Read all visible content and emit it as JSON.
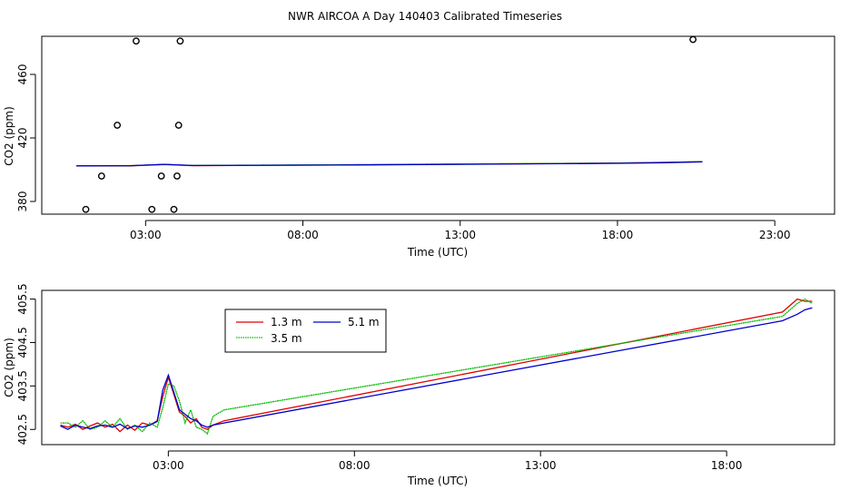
{
  "title": "NWR AIRCOA A  Day 140403  Calibrated Timeseries",
  "colors": {
    "r13": "#e00000",
    "r35": "#00bb00",
    "r51": "#0000cc",
    "axis": "#000000"
  },
  "chart_data": [
    {
      "type": "scatter",
      "id": "top",
      "xlabel": "Time (UTC)",
      "ylabel": "CO2 (ppm)",
      "xlim": [
        -0.3,
        24.9
      ],
      "ylim": [
        372,
        484
      ],
      "xticks": [
        3,
        8,
        13,
        18,
        23
      ],
      "xtick_labels": [
        "03:00",
        "08:00",
        "13:00",
        "18:00",
        "23:00"
      ],
      "yticks": [
        380,
        420,
        460
      ],
      "ytick_labels": [
        "380",
        "420",
        "460"
      ],
      "points": [
        {
          "x": 1.1,
          "y": 375
        },
        {
          "x": 1.6,
          "y": 396
        },
        {
          "x": 2.1,
          "y": 428
        },
        {
          "x": 2.7,
          "y": 481
        },
        {
          "x": 3.2,
          "y": 375
        },
        {
          "x": 3.5,
          "y": 396
        },
        {
          "x": 3.9,
          "y": 375
        },
        {
          "x": 4.0,
          "y": 396
        },
        {
          "x": 4.05,
          "y": 428
        },
        {
          "x": 4.1,
          "y": 481
        },
        {
          "x": 20.4,
          "y": 482
        }
      ],
      "series": [
        {
          "name": "1.3 m",
          "color": "#e00000",
          "x": [
            0.8,
            2.5,
            3.6,
            4.5,
            9,
            14,
            18,
            19.5,
            20.7
          ],
          "y": [
            402.4,
            402.4,
            403.3,
            402.5,
            403.0,
            403.6,
            404.2,
            404.6,
            405.0
          ]
        },
        {
          "name": "3.5 m",
          "color": "#00bb00",
          "x": [
            0.8,
            2.5,
            3.6,
            4.5,
            9,
            14,
            18,
            19.5,
            20.7
          ],
          "y": [
            402.5,
            402.5,
            403.2,
            402.7,
            403.1,
            403.7,
            404.1,
            404.5,
            405.1
          ]
        },
        {
          "name": "5.1 m",
          "color": "#0000cc",
          "x": [
            0.8,
            2.5,
            3.6,
            4.5,
            9,
            14,
            18,
            19.5,
            20.7
          ],
          "y": [
            402.4,
            402.5,
            403.4,
            402.6,
            402.9,
            403.5,
            404.0,
            404.4,
            405.0
          ]
        }
      ]
    },
    {
      "type": "line",
      "id": "bottom",
      "xlabel": "Time (UTC)",
      "ylabel": "CO2 (ppm)",
      "xlim": [
        -0.4,
        20.9
      ],
      "ylim": [
        402.15,
        405.7
      ],
      "xticks": [
        3,
        8,
        13,
        18
      ],
      "xtick_labels": [
        "03:00",
        "08:00",
        "13:00",
        "18:00"
      ],
      "yticks": [
        402.5,
        403.5,
        404.5,
        405.5
      ],
      "ytick_labels": [
        "402.5",
        "403.5",
        "404.5",
        "405.5"
      ],
      "legend": {
        "position": "top-left",
        "entries": [
          {
            "name": "1.3 m",
            "color": "#e00000"
          },
          {
            "name": "5.1 m",
            "color": "#0000cc"
          },
          {
            "name": "3.5 m",
            "color": "#00bb00"
          }
        ]
      },
      "series": [
        {
          "name": "1.3 m",
          "color": "#e00000",
          "x": [
            0.1,
            0.3,
            0.5,
            0.7,
            0.9,
            1.1,
            1.3,
            1.5,
            1.7,
            1.9,
            2.1,
            2.3,
            2.5,
            2.7,
            2.85,
            3.0,
            3.15,
            3.3,
            3.45,
            3.6,
            3.75,
            3.9,
            4.05,
            4.2,
            4.5,
            19.5,
            19.9,
            20.1,
            20.3
          ],
          "y": [
            402.6,
            402.55,
            402.62,
            402.5,
            402.58,
            402.65,
            402.55,
            402.62,
            402.45,
            402.6,
            402.48,
            402.65,
            402.6,
            402.7,
            403.25,
            403.7,
            403.3,
            402.9,
            402.8,
            402.65,
            402.75,
            402.55,
            402.5,
            402.6,
            402.7,
            405.2,
            405.5,
            405.45,
            405.45
          ]
        },
        {
          "name": "3.5 m",
          "color": "#00bb00",
          "x": [
            0.1,
            0.3,
            0.5,
            0.7,
            0.9,
            1.1,
            1.3,
            1.5,
            1.7,
            1.9,
            2.1,
            2.3,
            2.5,
            2.7,
            2.85,
            3.0,
            3.15,
            3.3,
            3.45,
            3.6,
            3.75,
            3.9,
            4.05,
            4.2,
            4.5,
            19.5,
            19.9,
            20.1,
            20.3
          ],
          "y": [
            402.65,
            402.65,
            402.55,
            402.7,
            402.5,
            402.55,
            402.7,
            402.55,
            402.75,
            402.5,
            402.6,
            402.45,
            402.65,
            402.55,
            403.0,
            403.55,
            403.5,
            403.15,
            402.65,
            402.95,
            402.55,
            402.5,
            402.4,
            402.8,
            402.95,
            405.1,
            405.4,
            405.5,
            405.4
          ]
        },
        {
          "name": "5.1 m",
          "color": "#0000cc",
          "x": [
            0.1,
            0.3,
            0.5,
            0.7,
            0.9,
            1.1,
            1.3,
            1.5,
            1.7,
            1.9,
            2.1,
            2.3,
            2.5,
            2.7,
            2.85,
            3.0,
            3.15,
            3.3,
            3.45,
            3.6,
            3.75,
            3.9,
            4.05,
            4.2,
            4.5,
            19.5,
            19.9,
            20.1,
            20.3
          ],
          "y": [
            402.58,
            402.5,
            402.6,
            402.55,
            402.52,
            402.58,
            402.6,
            402.55,
            402.62,
            402.52,
            402.58,
            402.55,
            402.6,
            402.68,
            403.4,
            403.75,
            403.35,
            402.95,
            402.85,
            402.75,
            402.7,
            402.6,
            402.55,
            402.6,
            402.65,
            405.0,
            405.15,
            405.25,
            405.3
          ]
        }
      ]
    }
  ]
}
